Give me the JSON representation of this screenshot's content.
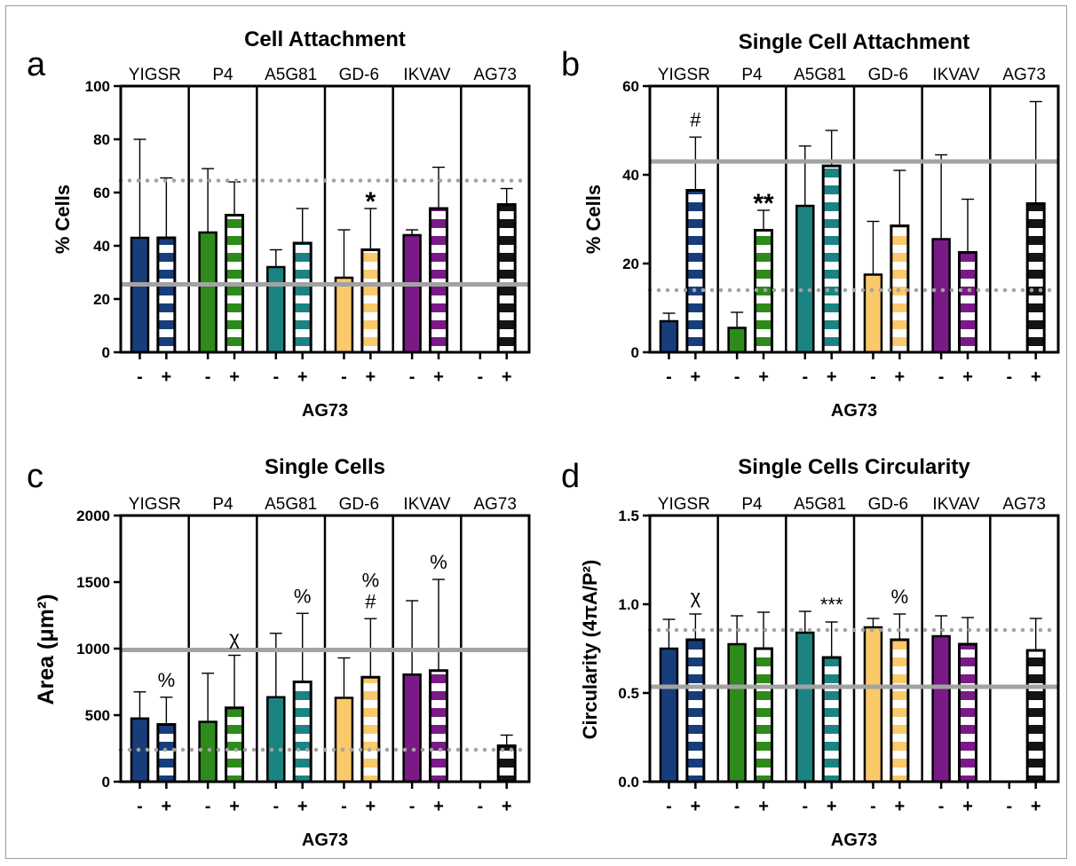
{
  "chart_data": [
    {
      "type": "bar",
      "panel_label": "a",
      "title": "Cell Attachment",
      "ylabel": "% Cells",
      "xlabel": "AG73",
      "ylim": [
        0,
        100
      ],
      "yticks": [
        "0",
        "20",
        "40",
        "60",
        "80",
        "100"
      ],
      "groups": [
        "YIGSR",
        "P4",
        "A5G81",
        "GD-6",
        "IKVAV",
        "AG73"
      ],
      "conditions": [
        "-",
        "+"
      ],
      "values": [
        [
          43,
          43
        ],
        [
          45,
          51.5
        ],
        [
          32,
          41
        ],
        [
          28,
          38.5
        ],
        [
          44,
          54
        ],
        [
          null,
          55.5
        ]
      ],
      "errors": [
        [
          37,
          22.5
        ],
        [
          24,
          12.5
        ],
        [
          6.5,
          13
        ],
        [
          18,
          15.5
        ],
        [
          2,
          15.5
        ],
        [
          null,
          6
        ]
      ],
      "ref_solid": 25.5,
      "ref_dotted": 64.5,
      "annotations": [
        {
          "group": 3,
          "cond": 1,
          "text": "*",
          "bold": true
        }
      ]
    },
    {
      "type": "bar",
      "panel_label": "b",
      "title": "Single Cell Attachment",
      "ylabel": "% Cells",
      "xlabel": "AG73",
      "ylim": [
        0,
        60
      ],
      "yticks": [
        "0",
        "20",
        "40",
        "60"
      ],
      "groups": [
        "YIGSR",
        "P4",
        "A5G81",
        "GD-6",
        "IKVAV",
        "AG73"
      ],
      "conditions": [
        "-",
        "+"
      ],
      "values": [
        [
          7,
          36.5
        ],
        [
          5.5,
          27.5
        ],
        [
          33,
          42
        ],
        [
          17.5,
          28.5
        ],
        [
          25.5,
          22.5
        ],
        [
          null,
          33.5
        ]
      ],
      "errors": [
        [
          1.8,
          12
        ],
        [
          3.5,
          4.5
        ],
        [
          13.5,
          8
        ],
        [
          12,
          12.5
        ],
        [
          19,
          12
        ],
        [
          null,
          23
        ]
      ],
      "ref_solid": 43,
      "ref_dotted": 14,
      "annotations": [
        {
          "group": 0,
          "cond": 1,
          "text": "#",
          "bold": false
        },
        {
          "group": 1,
          "cond": 1,
          "text": "**",
          "bold": true
        }
      ]
    },
    {
      "type": "bar",
      "panel_label": "c",
      "title": "Single Cells",
      "ylabel": "Area (μm²)",
      "xlabel": "AG73",
      "ylim": [
        0,
        2000
      ],
      "yticks": [
        "0",
        "500",
        "1000",
        "1500",
        "2000"
      ],
      "groups": [
        "YIGSR",
        "P4",
        "A5G81",
        "GD-6",
        "IKVAV",
        "AG73"
      ],
      "conditions": [
        "-",
        "+"
      ],
      "values": [
        [
          475,
          430
        ],
        [
          450,
          555
        ],
        [
          635,
          750
        ],
        [
          630,
          785
        ],
        [
          805,
          835
        ],
        [
          null,
          270
        ]
      ],
      "errors": [
        [
          200,
          205
        ],
        [
          365,
          395
        ],
        [
          480,
          515
        ],
        [
          300,
          440
        ],
        [
          555,
          685
        ],
        [
          null,
          80
        ]
      ],
      "ref_solid": 990,
      "ref_dotted": 240,
      "annotations": [
        {
          "group": 0,
          "cond": 1,
          "text": "%",
          "bold": false
        },
        {
          "group": 1,
          "cond": 1,
          "text": "χ",
          "bold": false
        },
        {
          "group": 2,
          "cond": 1,
          "text": "%",
          "bold": false
        },
        {
          "group": 3,
          "cond": 1,
          "text": "%",
          "bold": false
        },
        {
          "group": 3,
          "cond": 1,
          "text": "#",
          "bold": false
        },
        {
          "group": 4,
          "cond": 1,
          "text": "%",
          "bold": false
        }
      ]
    },
    {
      "type": "bar",
      "panel_label": "d",
      "title": "Single Cells Circularity",
      "ylabel": "Circularity (4πA/P²)",
      "xlabel": "AG73",
      "ylim": [
        0,
        1.5
      ],
      "yticks": [
        "0.0",
        "0.5",
        "1.0",
        "1.5"
      ],
      "groups": [
        "YIGSR",
        "P4",
        "A5G81",
        "GD-6",
        "IKVAV",
        "AG73"
      ],
      "conditions": [
        "-",
        "+"
      ],
      "values": [
        [
          0.75,
          0.8
        ],
        [
          0.775,
          0.75
        ],
        [
          0.84,
          0.7
        ],
        [
          0.87,
          0.8
        ],
        [
          0.82,
          0.775
        ],
        [
          null,
          0.74
        ]
      ],
      "errors": [
        [
          0.165,
          0.145
        ],
        [
          0.16,
          0.205
        ],
        [
          0.12,
          0.2
        ],
        [
          0.05,
          0.145
        ],
        [
          0.115,
          0.15
        ],
        [
          null,
          0.18
        ]
      ],
      "ref_solid": 0.535,
      "ref_dotted": 0.855,
      "annotations": [
        {
          "group": 0,
          "cond": 1,
          "text": "χ",
          "bold": false
        },
        {
          "group": 2,
          "cond": 1,
          "text": "***",
          "bold": false
        },
        {
          "group": 3,
          "cond": 1,
          "text": "%",
          "bold": false
        }
      ]
    }
  ],
  "colors": {
    "YIGSR": "#173e7a",
    "P4": "#2e8a1a",
    "A5G81": "#1b8482",
    "GD-6": "#fac96a",
    "IKVAV": "#7a1a86",
    "AG73": "#141414",
    "ref_line": "#a3a3a3"
  }
}
